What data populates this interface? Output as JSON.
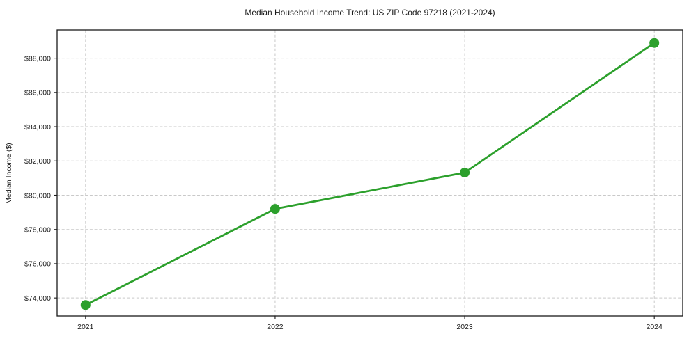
{
  "figure": {
    "title": "Median Household Income Trend: US ZIP Code 97218 (2021-2024)",
    "ylabel": "Median Income ($)"
  },
  "chart_data": {
    "type": "line",
    "title": "Median Household Income Trend: US ZIP Code 97218 (2021-2024)",
    "xlabel": "",
    "ylabel": "Median Income ($)",
    "x": [
      2021,
      2022,
      2023,
      2024
    ],
    "x_tick_labels": [
      "2021",
      "2022",
      "2023",
      "2024"
    ],
    "values": [
      73590,
      79200,
      81320,
      88890
    ],
    "yticks": [
      74000,
      76000,
      78000,
      80000,
      82000,
      84000,
      86000,
      88000
    ],
    "ytick_labels": [
      "$74,000",
      "$76,000",
      "$78,000",
      "$80,000",
      "$82,000",
      "$84,000",
      "$86,000",
      "$88,000"
    ],
    "xlim": [
      2020.85,
      2024.15
    ],
    "ylim": [
      72950,
      89650
    ],
    "grid": true,
    "legend_position": "none",
    "line_color": "#2ca02c",
    "marker": "circle",
    "marker_radius": 7,
    "line_width": 2.8,
    "background_color": "#ffffff",
    "grid_color": "#c9c9c9"
  }
}
